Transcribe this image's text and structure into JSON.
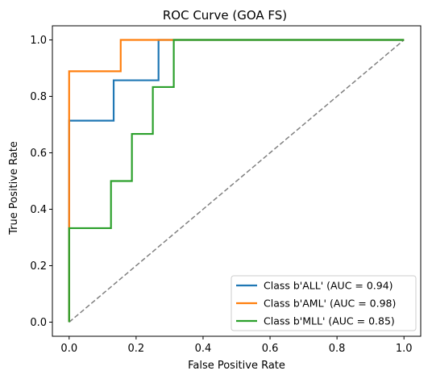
{
  "chart_data": {
    "type": "line",
    "title": "ROC Curve (GOA FS)",
    "xlabel": "False Positive Rate",
    "ylabel": "True Positive Rate",
    "xlim": [
      -0.05,
      1.05
    ],
    "ylim": [
      -0.05,
      1.05
    ],
    "xticks": [
      0.0,
      0.2,
      0.4,
      0.6,
      0.8,
      1.0
    ],
    "xtick_labels": [
      "0.0",
      "0.2",
      "0.4",
      "0.6",
      "0.8",
      "1.0"
    ],
    "yticks": [
      0.0,
      0.2,
      0.4,
      0.6,
      0.8,
      1.0
    ],
    "ytick_labels": [
      "0.0",
      "0.2",
      "0.4",
      "0.6",
      "0.8",
      "1.0"
    ],
    "grid": false,
    "legend_position": "lower-right",
    "series": [
      {
        "name": "Class b'ALL' (AUC = 0.94)",
        "color": "#1f77b4",
        "x": [
          0.0,
          0.0,
          0.0,
          0.133,
          0.133,
          0.267,
          0.267,
          1.0
        ],
        "y": [
          0.0,
          0.333,
          0.714,
          0.714,
          0.857,
          0.857,
          1.0,
          1.0
        ]
      },
      {
        "name": "Class b'AML' (AUC = 0.98)",
        "color": "#ff7f0e",
        "x": [
          0.0,
          0.0,
          0.0,
          0.154,
          0.154,
          1.0
        ],
        "y": [
          0.0,
          0.333,
          0.889,
          0.889,
          1.0,
          1.0
        ]
      },
      {
        "name": "Class b'MLL' (AUC = 0.85)",
        "color": "#2ca02c",
        "x": [
          0.0,
          0.0,
          0.125,
          0.125,
          0.1875,
          0.1875,
          0.25,
          0.25,
          0.3125,
          0.3125,
          1.0
        ],
        "y": [
          0.0,
          0.333,
          0.333,
          0.5,
          0.5,
          0.667,
          0.667,
          0.833,
          0.833,
          1.0,
          1.0
        ]
      }
    ],
    "reference_line": {
      "color": "#808080",
      "style": "dashed",
      "x": [
        0.0,
        1.0
      ],
      "y": [
        0.0,
        1.0
      ]
    }
  }
}
